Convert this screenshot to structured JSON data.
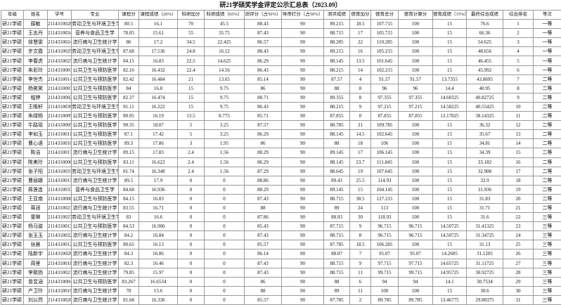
{
  "title": "研21学硕奖学金评定公示汇总表（2023.09）",
  "headers": [
    "年级",
    "姓名",
    "学号",
    "专业",
    "课程分",
    "课程成绩（20%）",
    "科研加分",
    "科研成绩（65%）",
    "测评分（占50%）",
    "导师打分（占50%）",
    "测评成绩",
    "德育加分",
    "德育总分",
    "德育计算分",
    "德育成绩（15%）",
    "最终综合成绩",
    "综合排名",
    "等次"
  ],
  "rows": [
    [
      "研21学硕",
      "薛敏",
      "2114310028",
      "劳动卫生与环境卫生学",
      "80.5",
      "16.1",
      "70",
      "45.5",
      "88.43",
      "90",
      "89.215",
      "18.5",
      "107.715",
      "100",
      "15",
      "76.6",
      "1",
      "一等"
    ],
    [
      "研21学硕",
      "王志丹",
      "2114310034",
      "营养与食品卫生学",
      "78.05",
      "15.61",
      "55",
      "35.75",
      "87.43",
      "90",
      "88.715",
      "17",
      "105.715",
      "100",
      "15",
      "66.36",
      "2",
      "一等"
    ],
    [
      "研21学硕",
      "徐慧雯",
      "2114310024",
      "流行病与卫生统计学",
      "86",
      "17.2",
      "34.5",
      "22.425",
      "86.57",
      "90",
      "88.285",
      "22",
      "110.285",
      "100",
      "15",
      "54.625",
      "3",
      "一等"
    ],
    [
      "研21学硕",
      "步文霞",
      "2114310029",
      "劳动卫生与环境卫生学",
      "87.68",
      "17.536",
      "24.8",
      "16.12",
      "88.43",
      "90",
      "89.215",
      "16",
      "105.215",
      "100",
      "15",
      "48.656",
      "4",
      "一等"
    ],
    [
      "研21学硕",
      "李春虎",
      "2114310025",
      "流行病与卫生统计学",
      "84.15",
      "16.83",
      "22.5",
      "14.625",
      "86.29",
      "90",
      "88.145",
      "13.5",
      "101.645",
      "100",
      "15",
      "46.455",
      "5",
      "一等"
    ],
    [
      "研21学硕",
      "朱彩玲",
      "2114310001",
      "公共卫生与预防医学",
      "82.16",
      "16.432",
      "22.4",
      "14.56",
      "86.43",
      "90",
      "88.215",
      "14",
      "102.215",
      "100",
      "15",
      "45.992",
      "6",
      "一等"
    ],
    [
      "研21学硕",
      "李世杰",
      "2114310014",
      "公共卫生与预防医学",
      "82.42",
      "16.484",
      "21",
      "13.65",
      "85.14",
      "90",
      "87.57",
      "4",
      "91.57",
      "91.57",
      "13.7355",
      "43.8695",
      "7",
      "二等"
    ],
    [
      "研21学硕",
      "杨笑笑",
      "2114310007",
      "公共卫生与预防医学",
      "84",
      "16.8",
      "15",
      "9.75",
      "86",
      "90",
      "88",
      "8",
      "96",
      "96",
      "14.4",
      "40.95",
      "8",
      "二等"
    ],
    [
      "研21学硕",
      "程婷",
      "2114310002",
      "公共卫生与预防医学",
      "82.37",
      "16.474",
      "15",
      "9.75",
      "88.71",
      "90",
      "89.355",
      "8",
      "97.355",
      "97.355",
      "14.60325",
      "40.82725",
      "9",
      "二等"
    ],
    [
      "研21学硕",
      "王皓轩",
      "2114310030",
      "劳动卫生与环境卫生学",
      "81.11",
      "16.222",
      "15",
      "9.75",
      "86.43",
      "90",
      "88.215",
      "9",
      "97.215",
      "97.215",
      "14.58225",
      "40.55425",
      "10",
      "二等"
    ],
    [
      "研21学硕",
      "朱绿杨",
      "2114310009",
      "公共卫生与预防医学",
      "80.95",
      "16.19",
      "13.5",
      "8.775",
      "85.71",
      "90",
      "87.855",
      "0",
      "87.855",
      "87.855",
      "13.17825",
      "38.14325",
      "11",
      "二等"
    ],
    [
      "研21学硕",
      "牛路瑶",
      "2114310005",
      "公共卫生与预防医学",
      "90.35",
      "18.07",
      "5",
      "3.25",
      "87.57",
      "90",
      "88.785",
      "21",
      "109.785",
      "100",
      "15",
      "36.32",
      "12",
      "二等"
    ],
    [
      "研21学硕",
      "李如玉",
      "2114310011",
      "公共卫生与预防医学",
      "87.1",
      "17.42",
      "5",
      "3.25",
      "86.29",
      "90",
      "88.145",
      "14.5",
      "102.645",
      "100",
      "15",
      "35.67",
      "13",
      "二等"
    ],
    [
      "研21学硕",
      "曹心语",
      "2114310010",
      "公共卫生与预防医学",
      "89.3",
      "17.86",
      "3",
      "1.95",
      "86",
      "90",
      "88",
      "18",
      "106",
      "100",
      "15",
      "34.81",
      "14",
      "二等"
    ],
    [
      "研21学硕",
      "陈洁",
      "2114310017",
      "流行病与卫生统计学",
      "89.15",
      "17.83",
      "2.4",
      "1.56",
      "88.29",
      "90",
      "89.145",
      "17",
      "106.145",
      "100",
      "15",
      "34.39",
      "15",
      "二等"
    ],
    [
      "研21学硕",
      "陈美玲",
      "2114310006",
      "公共卫生与预防医学",
      "83.11",
      "16.622",
      "2.4",
      "1.56",
      "86.29",
      "90",
      "88.145",
      "23.7",
      "111.845",
      "100",
      "15",
      "33.182",
      "16",
      "二等"
    ],
    [
      "研21学硕",
      "张子阳",
      "2114310031",
      "劳动卫生与环境卫生学",
      "81.74",
      "16.348",
      "2.4",
      "1.56",
      "87.29",
      "90",
      "88.645",
      "19",
      "107.645",
      "100",
      "15",
      "32.908",
      "17",
      "二等"
    ],
    [
      "研21学硕",
      "曹丽娜",
      "2114310015",
      "流行病与卫生统计学",
      "89.5",
      "17.9",
      "0",
      "0",
      "88.86",
      "90",
      "89.43",
      "25.5",
      "114.93",
      "100",
      "15",
      "32.9",
      "18",
      "二等"
    ],
    [
      "研21学硕",
      "蒋莲连",
      "2114310033",
      "营养与食品卫生学",
      "84.68",
      "16.936",
      "0",
      "0",
      "88.29",
      "90",
      "89.145",
      "15",
      "104.145",
      "100",
      "15",
      "31.936",
      "19",
      "二等"
    ],
    [
      "研21学硕",
      "王亚南",
      "2114310008",
      "公共卫生与预防医学",
      "84.15",
      "16.83",
      "0",
      "0",
      "87.43",
      "90",
      "88.715",
      "38.5",
      "127.215",
      "100",
      "15",
      "31.83",
      "20",
      "二等"
    ],
    [
      "研21学硕",
      "蒋润",
      "2114310023",
      "流行病与卫生统计学",
      "83.55",
      "16.71",
      "0",
      "0",
      "88",
      "90",
      "89",
      "24",
      "113",
      "100",
      "15",
      "31.71",
      "21",
      "二等"
    ],
    [
      "研21学硕",
      "童琳",
      "2114310027",
      "劳动卫生与环境卫生学",
      "83",
      "16.6",
      "0",
      "0",
      "87.86",
      "90",
      "88.93",
      "30",
      "118.93",
      "100",
      "15",
      "31.6",
      "22",
      "三等"
    ],
    [
      "研21学硕",
      "杨马骏",
      "2114310013",
      "公共卫生与预防医学",
      "84.53",
      "16.906",
      "0",
      "0",
      "85.43",
      "90",
      "87.715",
      "9",
      "96.715",
      "96.715",
      "14.50725",
      "31.41325",
      "23",
      "三等"
    ],
    [
      "研21学硕",
      "张玉玉",
      "2114310022",
      "流行病与卫生统计学",
      "84.2",
      "16.84",
      "0",
      "0",
      "87.43",
      "90",
      "88.715",
      "8",
      "96.715",
      "96.715",
      "14.50725",
      "31.34725",
      "24",
      "三等"
    ],
    [
      "研21学硕",
      "张晨",
      "2114310012",
      "公共卫生与预防医学",
      "80.65",
      "16.13",
      "0",
      "0",
      "85.57",
      "90",
      "87.785",
      "18.5",
      "106.285",
      "100",
      "15",
      "31.13",
      "25",
      "三等"
    ],
    [
      "研21学硕",
      "陆新宇",
      "2114310026",
      "流行病与卫生统计学",
      "84.3",
      "16.86",
      "0",
      "0",
      "86.14",
      "90",
      "88.07",
      "7",
      "95.07",
      "95.07",
      "14.2605",
      "31.1205",
      "26",
      "三等"
    ],
    [
      "研21学硕",
      "周里",
      "2114310018",
      "流行病与卫生统计学",
      "82.3",
      "16.46",
      "0",
      "0",
      "87.43",
      "90",
      "88.715",
      "9",
      "97.715",
      "97.715",
      "14.65725",
      "31.11725",
      "27",
      "三等"
    ],
    [
      "研21学硕",
      "李歌扬",
      "2114310021",
      "流行病与卫生统计学",
      "79.85",
      "15.97",
      "0",
      "0",
      "87.43",
      "90",
      "88.715",
      "11",
      "99.715",
      "99.715",
      "14.95725",
      "30.92725",
      "28",
      "三等"
    ],
    [
      "研21学硕",
      "曾昱涵",
      "2114310004",
      "公共卫生与预防医学",
      "83.267",
      "16.6534",
      "0",
      "0",
      "86",
      "90",
      "88",
      "6",
      "94",
      "94",
      "14.1",
      "30.7534",
      "29",
      "三等"
    ],
    [
      "研21学硕",
      "产卫玲",
      "2114310019",
      "流行病与卫生统计学",
      "78",
      "15.6",
      "0",
      "0",
      "88",
      "90",
      "89",
      "11",
      "100",
      "100",
      "15",
      "30.6",
      "30",
      "三等"
    ],
    [
      "研21学硕",
      "刘以然",
      "2114310020",
      "流行病与卫生统计学",
      "81.68",
      "16.336",
      "0",
      "0",
      "85.57",
      "90",
      "87.785",
      "2",
      "89.785",
      "89.785",
      "13.46775",
      "29.80375",
      "31",
      "三等"
    ]
  ]
}
